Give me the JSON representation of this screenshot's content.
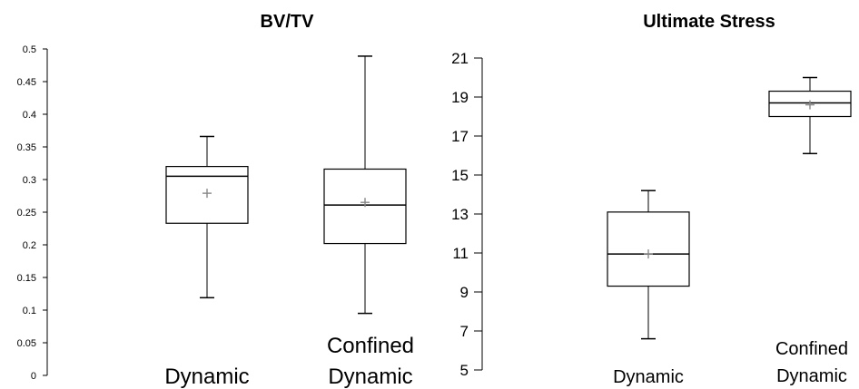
{
  "chart_data": [
    {
      "type": "box",
      "title": "BV/TV",
      "ylim": [
        0,
        0.5
      ],
      "yticks": [
        "0",
        "0.05",
        "0.1",
        "0.15",
        "0.2",
        "0.25",
        "0.3",
        "0.35",
        "0.4",
        "0.45",
        "0.5"
      ],
      "categories": [
        "Dynamic",
        "Confined Dynamic"
      ],
      "boxes": [
        {
          "category": "Dynamic",
          "min": 0.119,
          "q1": 0.233,
          "median": 0.305,
          "q3": 0.32,
          "max": 0.366,
          "mean": 0.279
        },
        {
          "category": "Confined Dynamic",
          "min": 0.095,
          "q1": 0.202,
          "median": 0.261,
          "q3": 0.316,
          "max": 0.489,
          "mean": 0.265
        }
      ]
    },
    {
      "type": "box",
      "title": "Ultimate Stress",
      "ylim": [
        5,
        21
      ],
      "yticks": [
        "5",
        "7",
        "9",
        "11",
        "13",
        "15",
        "17",
        "19",
        "21"
      ],
      "categories": [
        "Dynamic",
        "Confined Dynamic"
      ],
      "boxes": [
        {
          "category": "Dynamic",
          "min": 6.6,
          "q1": 9.3,
          "median": 10.95,
          "q3": 13.1,
          "max": 14.2,
          "mean": 10.95
        },
        {
          "category": "Confined Dynamic",
          "min": 16.1,
          "q1": 18.0,
          "median": 18.7,
          "q3": 19.3,
          "max": 20.0,
          "mean": 18.6
        }
      ]
    }
  ]
}
